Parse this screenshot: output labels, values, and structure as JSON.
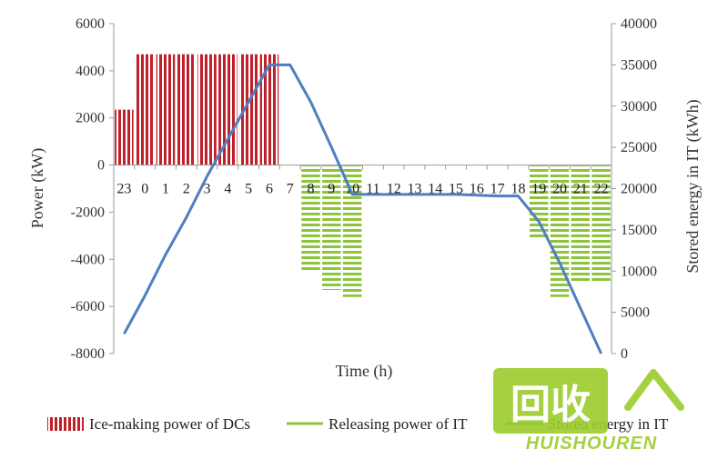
{
  "chart_data": {
    "type": "bar",
    "x_axis": {
      "title": "Time (h)",
      "categories": [
        "23",
        "0",
        "1",
        "2",
        "3",
        "4",
        "5",
        "6",
        "7",
        "8",
        "9",
        "10",
        "11",
        "12",
        "13",
        "14",
        "15",
        "16",
        "17",
        "18",
        "19",
        "20",
        "21",
        "22"
      ]
    },
    "y_axis_left": {
      "title": "Power (kW)",
      "range": [
        -8000,
        6000
      ],
      "ticks": [
        6000,
        4000,
        2000,
        0,
        -2000,
        -4000,
        -6000,
        -8000
      ]
    },
    "y_axis_right": {
      "title": "Stored energy in IT (kWh)",
      "range": [
        0,
        40000
      ],
      "ticks": [
        40000,
        35000,
        30000,
        25000,
        20000,
        15000,
        10000,
        5000,
        0
      ]
    },
    "grid": false,
    "legend_position": "bottom",
    "series": [
      {
        "name": "Ice-making power of DCs",
        "kind": "bar",
        "axis": "left",
        "color": "#c0202a",
        "pattern": "vertical-stripes",
        "values": [
          2350,
          4700,
          4700,
          4700,
          4700,
          4700,
          4700,
          4700,
          0,
          0,
          0,
          0,
          0,
          0,
          0,
          0,
          0,
          0,
          0,
          0,
          0,
          0,
          0,
          0
        ]
      },
      {
        "name": "Releasing  power of IT",
        "kind": "bar",
        "axis": "left",
        "color": "#8cc43c",
        "pattern": "horizontal-stripes",
        "values": [
          0,
          0,
          0,
          0,
          0,
          0,
          0,
          0,
          0,
          -4500,
          -5300,
          -5600,
          0,
          0,
          0,
          0,
          0,
          0,
          0,
          0,
          -3100,
          -5600,
          -5000,
          -5000
        ]
      },
      {
        "name": "Stored energy in IT",
        "kind": "line",
        "axis": "right",
        "color": "#4f7fc0",
        "x": [
          -0.5,
          0.5,
          1.5,
          2.5,
          3.5,
          4.5,
          5.5,
          6.5,
          7.5,
          8.5,
          9.5,
          10.5,
          11.5,
          12.5,
          13.5,
          14.5,
          15.5,
          16.5,
          17.5,
          18.5,
          19.5,
          20.5,
          21.5,
          22.5
        ],
        "values": [
          2400,
          7000,
          12000,
          16500,
          21500,
          26000,
          30500,
          35000,
          35000,
          30500,
          25000,
          19300,
          19300,
          19300,
          19300,
          19300,
          19300,
          19200,
          19100,
          19100,
          16000,
          11000,
          5500,
          0
        ]
      }
    ]
  },
  "watermark": {
    "text_main": "回收",
    "text_sub": "HUISHOUREN",
    "color": "#9ccc2c"
  }
}
